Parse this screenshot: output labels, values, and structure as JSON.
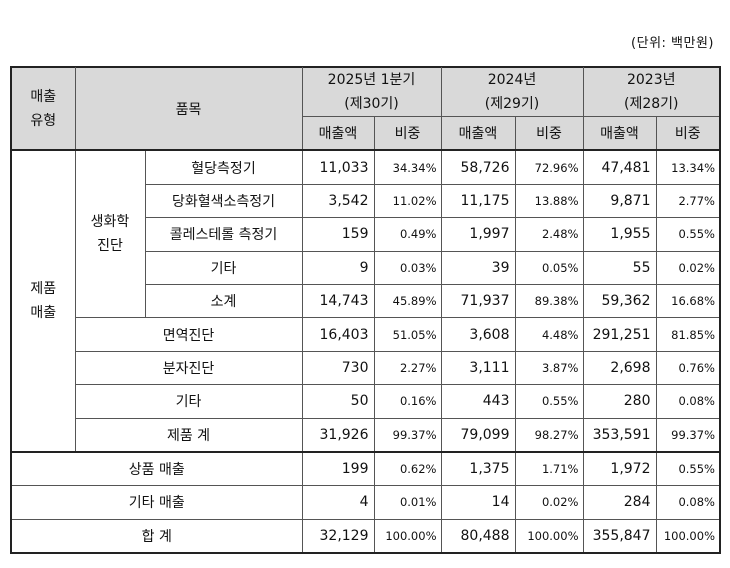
{
  "unit_label": "(단위: 백만원)",
  "header": {
    "sales_type_line1": "매출",
    "sales_type_line2": "유형",
    "item": "품목",
    "periods": [
      {
        "year": "2025년 1분기",
        "term": "(제30기)"
      },
      {
        "year": "2024년",
        "term": "(제29기)"
      },
      {
        "year": "2023년",
        "term": "(제28기)"
      }
    ],
    "sales": "매출액",
    "share": "비중"
  },
  "groups": {
    "product_sales_line1": "제품",
    "product_sales_line2": "매출",
    "biochem_line1": "생화학",
    "biochem_line2": "진단"
  },
  "rows": [
    {
      "label": "혈당측정기",
      "v": [
        "11,033",
        "34.34%",
        "58,726",
        "72.96%",
        "47,481",
        "13.34%"
      ]
    },
    {
      "label": "당화혈색소측정기",
      "v": [
        "3,542",
        "11.02%",
        "11,175",
        "13.88%",
        "9,871",
        "2.77%"
      ]
    },
    {
      "label": "콜레스테롤 측정기",
      "v": [
        "159",
        "0.49%",
        "1,997",
        "2.48%",
        "1,955",
        "0.55%"
      ]
    },
    {
      "label": "기타",
      "v": [
        "9",
        "0.03%",
        "39",
        "0.05%",
        "55",
        "0.02%"
      ]
    },
    {
      "label": "소계",
      "v": [
        "14,743",
        "45.89%",
        "71,937",
        "89.38%",
        "59,362",
        "16.68%"
      ]
    },
    {
      "label": "면역진단",
      "v": [
        "16,403",
        "51.05%",
        "3,608",
        "4.48%",
        "291,251",
        "81.85%"
      ]
    },
    {
      "label": "분자진단",
      "v": [
        "730",
        "2.27%",
        "3,111",
        "3.87%",
        "2,698",
        "0.76%"
      ]
    },
    {
      "label": "기타",
      "v": [
        "50",
        "0.16%",
        "443",
        "0.55%",
        "280",
        "0.08%"
      ]
    },
    {
      "label": "제품 계",
      "v": [
        "31,926",
        "99.37%",
        "79,099",
        "98.27%",
        "353,591",
        "99.37%"
      ]
    },
    {
      "label": "상품 매출",
      "v": [
        "199",
        "0.62%",
        "1,375",
        "1.71%",
        "1,972",
        "0.55%"
      ]
    },
    {
      "label": "기타 매출",
      "v": [
        "4",
        "0.01%",
        "14",
        "0.02%",
        "284",
        "0.08%"
      ]
    },
    {
      "label": "합 계",
      "v": [
        "32,129",
        "100.00%",
        "80,488",
        "100.00%",
        "355,847",
        "100.00%"
      ]
    }
  ]
}
